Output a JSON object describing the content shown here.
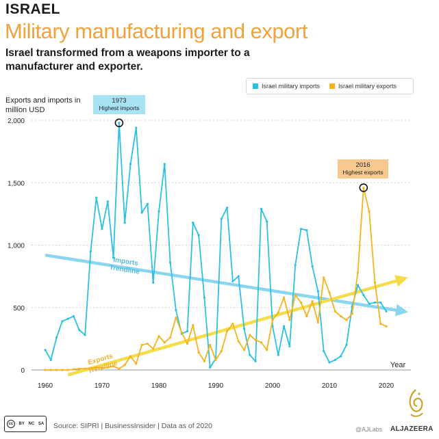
{
  "header": {
    "country": "ISRAEL",
    "headline": "Military manufacturing and export",
    "subtitle": "Israel transformed from a weapons importer to a manufacturer and exporter."
  },
  "colors": {
    "imports": "#29c0e6",
    "exports": "#f5b21b",
    "imports_trend": "#8ad6f0",
    "exports_trend": "#f7dc4a",
    "headline": "#f2a23a",
    "callout_imports": "#a8e3f5",
    "callout_exports": "#f7c98f"
  },
  "chart_data": {
    "type": "line",
    "title": "Military manufacturing and export",
    "ylabel": "Exports and imports in million USD",
    "xlabel": "Year",
    "x_ticks": [
      1960,
      1970,
      1980,
      1990,
      2000,
      2010,
      2020
    ],
    "y_ticks": [
      0,
      500,
      1000,
      1500,
      2000
    ],
    "y_tick_labels": [
      "0",
      "500",
      "1,000",
      "1,500",
      "2,000"
    ],
    "xlim": [
      1960,
      2020
    ],
    "ylim": [
      0,
      2000
    ],
    "legend": [
      "Israel military imports",
      "Israel military exports"
    ],
    "series": [
      {
        "name": "Israel military imports",
        "x": [
          1960,
          1961,
          1962,
          1963,
          1964,
          1965,
          1966,
          1967,
          1968,
          1969,
          1970,
          1971,
          1972,
          1973,
          1974,
          1975,
          1976,
          1977,
          1978,
          1979,
          1980,
          1981,
          1982,
          1983,
          1984,
          1985,
          1986,
          1987,
          1988,
          1989,
          1990,
          1991,
          1992,
          1993,
          1994,
          1995,
          1996,
          1997,
          1998,
          1999,
          2000,
          2001,
          2002,
          2003,
          2004,
          2005,
          2006,
          2007,
          2008,
          2009,
          2010,
          2011,
          2012,
          2013,
          2014,
          2015,
          2016,
          2017,
          2018,
          2019,
          2020
        ],
        "values": [
          160,
          80,
          260,
          390,
          410,
          430,
          320,
          280,
          950,
          1380,
          1130,
          1350,
          900,
          1980,
          1180,
          1650,
          1940,
          1260,
          1330,
          700,
          1270,
          1650,
          860,
          480,
          290,
          310,
          1180,
          1080,
          580,
          20,
          90,
          1210,
          1300,
          710,
          750,
          330,
          120,
          70,
          1290,
          1190,
          350,
          120,
          350,
          190,
          840,
          1130,
          1120,
          830,
          630,
          150,
          60,
          80,
          110,
          200,
          510,
          680,
          600,
          530,
          540,
          540,
          470
        ]
      },
      {
        "name": "Israel military exports",
        "x": [
          1960,
          1961,
          1962,
          1963,
          1964,
          1965,
          1966,
          1967,
          1968,
          1969,
          1970,
          1971,
          1972,
          1973,
          1974,
          1975,
          1976,
          1977,
          1978,
          1979,
          1980,
          1981,
          1982,
          1983,
          1984,
          1985,
          1986,
          1987,
          1988,
          1989,
          1990,
          1991,
          1992,
          1993,
          1994,
          1995,
          1996,
          1997,
          1998,
          1999,
          2000,
          2001,
          2002,
          2003,
          2004,
          2005,
          2006,
          2007,
          2008,
          2009,
          2010,
          2011,
          2012,
          2013,
          2014,
          2015,
          2016,
          2017,
          2018,
          2019,
          2020
        ],
        "values": [
          0,
          0,
          0,
          0,
          0,
          5,
          10,
          10,
          15,
          20,
          15,
          20,
          30,
          10,
          40,
          110,
          50,
          200,
          210,
          170,
          270,
          220,
          260,
          420,
          300,
          210,
          360,
          140,
          70,
          200,
          80,
          150,
          310,
          370,
          230,
          160,
          280,
          240,
          220,
          160,
          400,
          460,
          580,
          400,
          600,
          540,
          430,
          550,
          380,
          740,
          620,
          470,
          430,
          400,
          450,
          780,
          1460,
          1270,
          700,
          370,
          350
        ]
      }
    ],
    "trendlines": [
      {
        "name": "Imports Trendline",
        "label_line1": "Imports",
        "label_line2": "Trendline",
        "x": [
          1960,
          2023
        ],
        "values": [
          920,
          470
        ]
      },
      {
        "name": "Exports Trendline",
        "label_line1": "Exports",
        "label_line2": "Trendline",
        "x": [
          1964,
          2023
        ],
        "values": [
          -40,
          730
        ]
      }
    ],
    "annotations": [
      {
        "year": "1973",
        "text": "Highest imports",
        "x": 1973,
        "y": 1980
      },
      {
        "year": "2016",
        "text": "Highest exports",
        "x": 2016,
        "y": 1460
      }
    ]
  },
  "footer": {
    "license": [
      "cc",
      "BY",
      "NC",
      "SA"
    ],
    "source": "Source: SIPRI | BusinessInsider | Data as of 2020",
    "credit": "@AJLabs",
    "brand": "ALJAZEERA"
  }
}
